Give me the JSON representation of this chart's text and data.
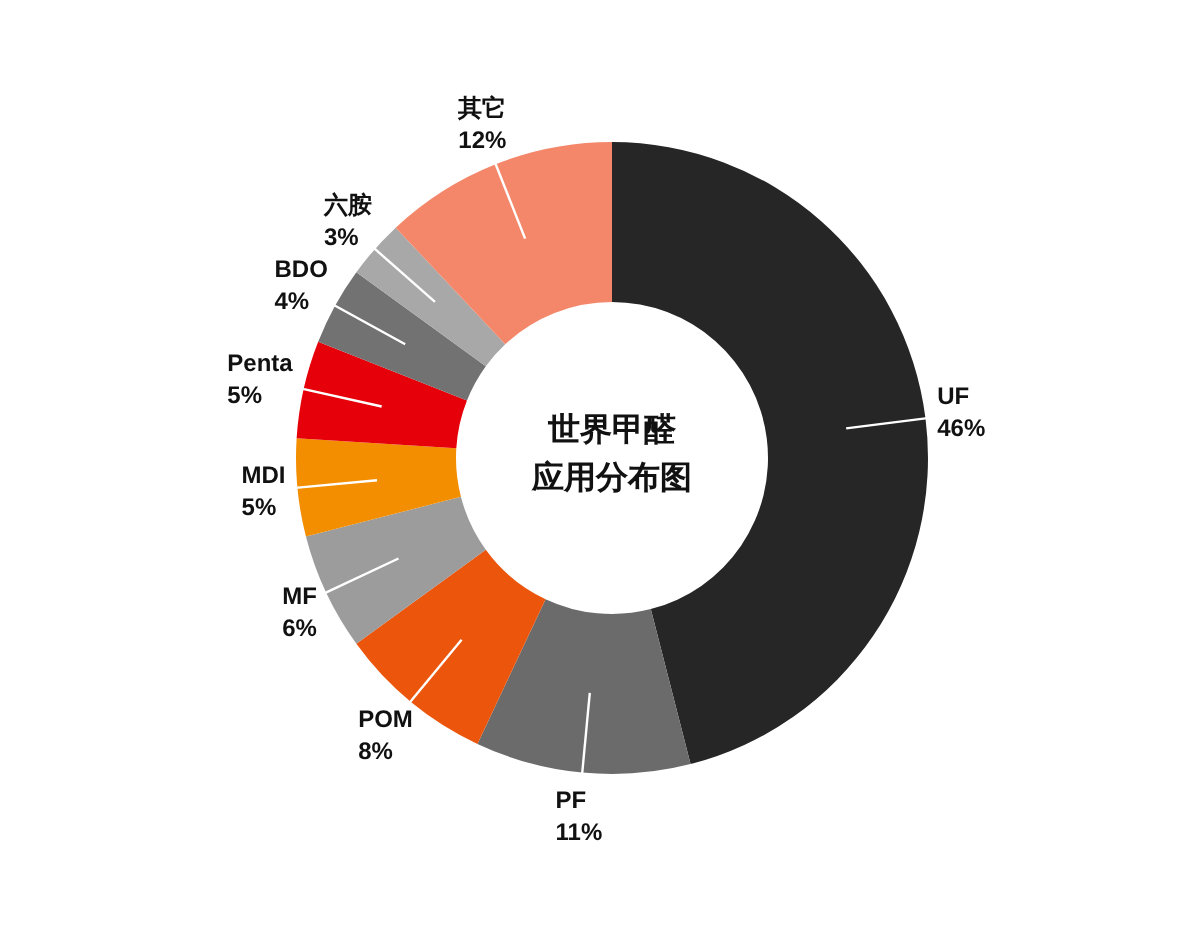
{
  "chart_data": {
    "type": "donut",
    "title": "世界甲醛应用分布图",
    "categories": [
      "UF",
      "PF",
      "POM",
      "MF",
      "MDI",
      "Penta",
      "BDO",
      "六胺",
      "其它"
    ],
    "values": [
      46,
      11,
      8,
      6,
      5,
      5,
      4,
      3,
      12
    ],
    "value_labels": [
      "46%",
      "11%",
      "8%",
      "6%",
      "5%",
      "5%",
      "4%",
      "3%",
      "12%"
    ],
    "colors": [
      "#262626",
      "#6b6b6b",
      "#ec550c",
      "#9c9c9c",
      "#f28e00",
      "#e6000a",
      "#727272",
      "#a8a8a8",
      "#f4876a"
    ]
  }
}
